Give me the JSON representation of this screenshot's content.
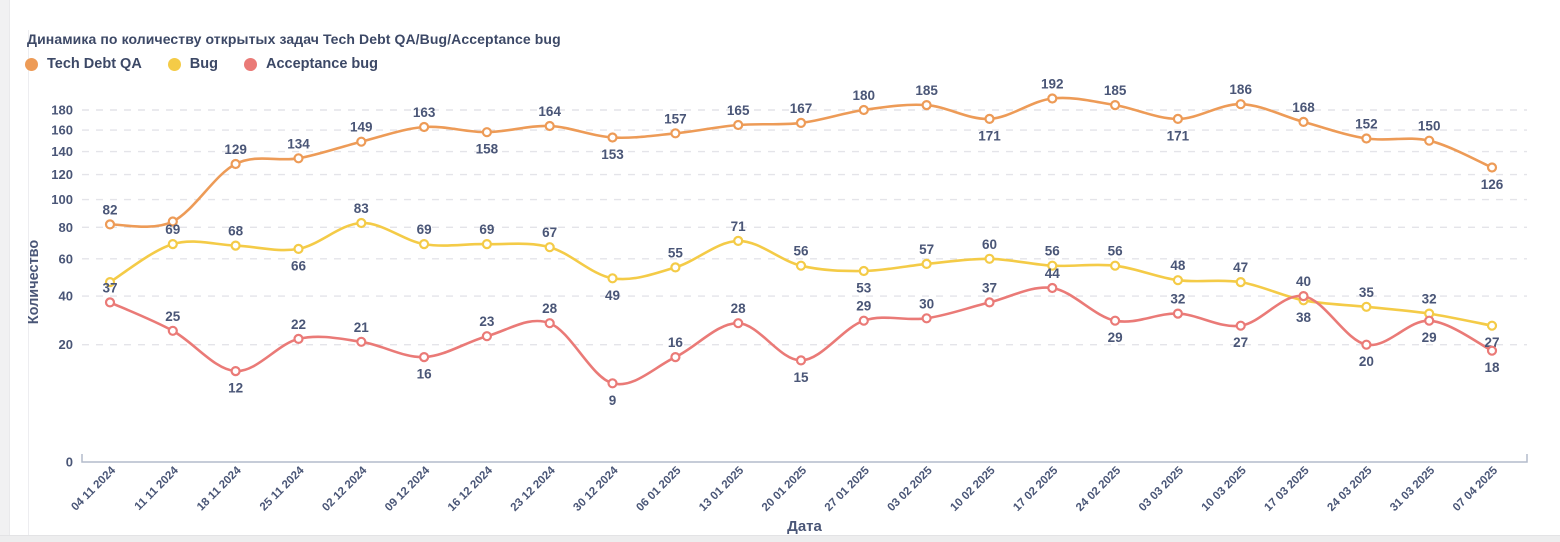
{
  "header": {
    "title": "Динамика по количеству открытых задач Tech Debt QA/Bug/Acceptance bug"
  },
  "legend": {
    "items": [
      {
        "label": "Tech Debt QA",
        "color": "#ed9b57"
      },
      {
        "label": "Bug",
        "color": "#f4cb47"
      },
      {
        "label": "Acceptance bug",
        "color": "#ea7a77"
      }
    ]
  },
  "chart_data": {
    "type": "line",
    "title": "Динамика по количеству открытых задач Tech Debt QA/Bug/Acceptance bug",
    "xlabel": "Дата",
    "ylabel": "Количество",
    "x": [
      "04 11 2024",
      "11 11 2024",
      "18 11 2024",
      "25 11 2024",
      "02 12 2024",
      "09 12 2024",
      "16 12 2024",
      "23 12 2024",
      "30 12 2024",
      "06 01 2025",
      "13 01 2025",
      "20 01 2025",
      "27 01 2025",
      "03 02 2025",
      "10 02 2025",
      "17 02 2025",
      "24 02 2025",
      "03 03 2025",
      "10 03 2025",
      "17 03 2025",
      "24 03 2025",
      "31 03 2025",
      "07 04 2025"
    ],
    "y_ticks": [
      0,
      20,
      40,
      60,
      80,
      100,
      120,
      140,
      160,
      180
    ],
    "ylim": [
      0,
      200
    ],
    "y_scale": "sqrt",
    "grid": "horizontal-dashed",
    "legend_position": "top-left",
    "series": [
      {
        "name": "Tech Debt QA",
        "color": "#ed9b57",
        "values": [
          82,
          84,
          129,
          134,
          149,
          163,
          158,
          164,
          153,
          157,
          165,
          167,
          180,
          185,
          171,
          192,
          185,
          171,
          186,
          168,
          152,
          150,
          126
        ],
        "labels": [
          "82",
          "",
          "129",
          "134",
          "149",
          "163",
          "158",
          "164",
          "153",
          "157",
          "165",
          "167",
          "180",
          "185",
          "171",
          "192",
          "185",
          "171",
          "186",
          "168",
          "152",
          "150",
          "126"
        ],
        "label_side": [
          "above",
          "above",
          "above",
          "above",
          "above",
          "above",
          "below",
          "above",
          "below",
          "above",
          "above",
          "above",
          "above",
          "above",
          "below",
          "above",
          "above",
          "below",
          "above",
          "above",
          "above",
          "above",
          "below"
        ]
      },
      {
        "name": "Bug",
        "color": "#f4cb47",
        "values": [
          47,
          69,
          68,
          66,
          83,
          69,
          69,
          67,
          49,
          55,
          71,
          56,
          53,
          57,
          60,
          56,
          56,
          48,
          47,
          38,
          35,
          32,
          27
        ],
        "labels": [
          "",
          "69",
          "68",
          "66",
          "83",
          "69",
          "69",
          "67",
          "49",
          "55",
          "71",
          "56",
          "53",
          "57",
          "60",
          "56",
          "56",
          "48",
          "47",
          "38",
          "35",
          "32",
          "27"
        ],
        "label_side": [
          "above",
          "above",
          "above",
          "below",
          "above",
          "above",
          "above",
          "above",
          "below",
          "above",
          "above",
          "above",
          "below",
          "above",
          "above",
          "above",
          "above",
          "above",
          "above",
          "below",
          "above",
          "above",
          "below"
        ]
      },
      {
        "name": "Acceptance bug",
        "color": "#ea7a77",
        "values": [
          37,
          25,
          12,
          22,
          21,
          16,
          23,
          28,
          9,
          16,
          28,
          15,
          29,
          30,
          37,
          44,
          29,
          32,
          27,
          40,
          20,
          29,
          18
        ],
        "labels": [
          "37",
          "25",
          "12",
          "22",
          "21",
          "16",
          "23",
          "28",
          "9",
          "16",
          "28",
          "15",
          "29",
          "30",
          "37",
          "44",
          "29",
          "32",
          "27",
          "40",
          "20",
          "29",
          "18"
        ],
        "label_side": [
          "above",
          "above",
          "below",
          "above",
          "above",
          "below",
          "above",
          "above",
          "below",
          "above",
          "above",
          "below",
          "above",
          "above",
          "above",
          "above",
          "below",
          "above",
          "below",
          "above",
          "below",
          "below",
          "below"
        ]
      }
    ],
    "styles": {
      "grid_color": "#e4e4e9",
      "axis_color": "#b3bbcb",
      "tick_label_color": "#4a5677",
      "point_label_color": "#4a5677",
      "marker_fill": "#ffffff"
    }
  }
}
